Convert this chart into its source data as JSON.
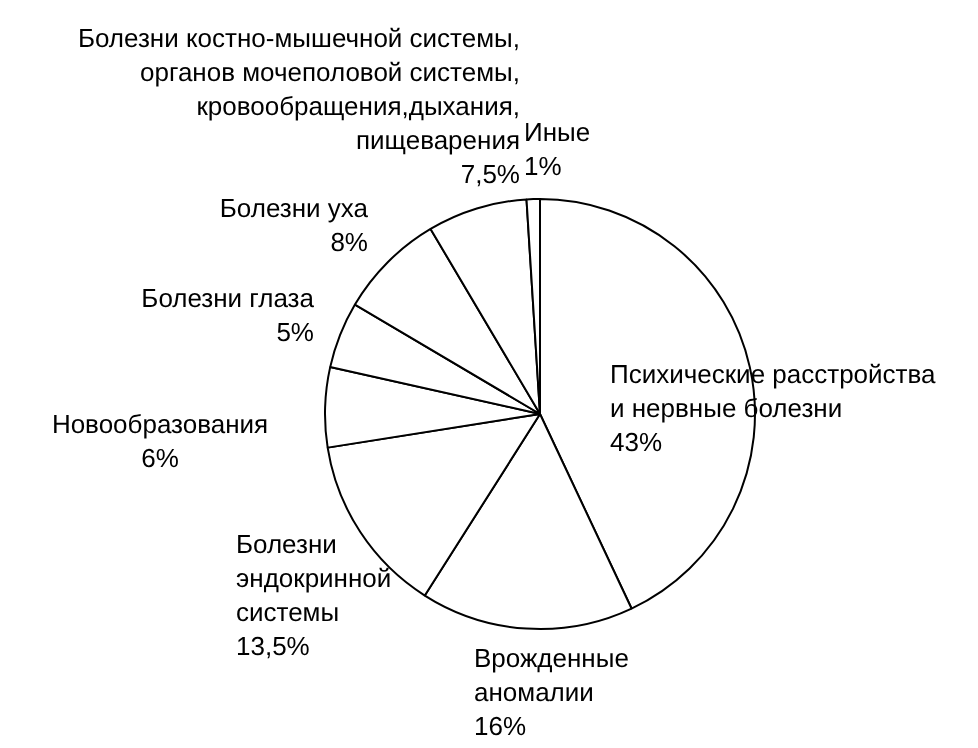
{
  "chart_data": {
    "type": "pie",
    "categories": [
      "Психические расстройства\nи нервные болезни",
      "Врожденные\nаномалии",
      "Болезни\nэндокринной\nсистемы",
      "Новообразования",
      "Болезни глаза",
      "Болезни уха",
      "Болезни костно-мышечной системы,\nорганов мочеполовой системы,\nкровообращения,дыхания,\nпищеварения",
      "Иные"
    ],
    "values": [
      43,
      16,
      13.5,
      6,
      5,
      8,
      7.5,
      1
    ],
    "value_labels": [
      "43%",
      "16%",
      "13,5%",
      "6%",
      "5%",
      "8%",
      "7,5%",
      "1%"
    ],
    "colors": [
      "#ffffff",
      "#ffffff",
      "#ffffff",
      "#ffffff",
      "#ffffff",
      "#ffffff",
      "#ffffff",
      "#ffffff"
    ],
    "legend": false
  }
}
